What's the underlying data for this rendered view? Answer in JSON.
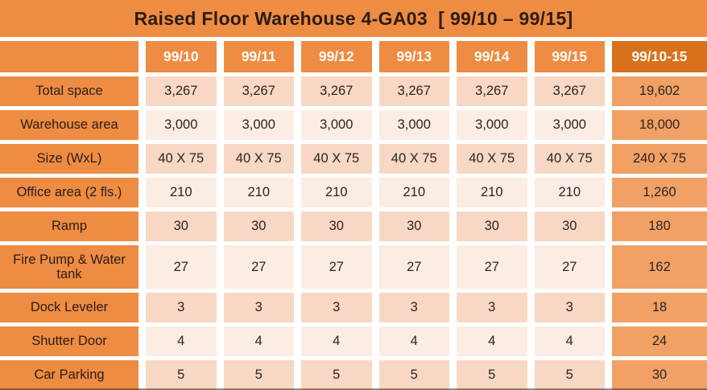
{
  "title": "Raised Floor Warehouse 4-GA03  [ 99/10 – 99/15]",
  "colors": {
    "orange": "#EE8C43",
    "dark_orange": "#D9711C",
    "total_column_cell": "#F1A166",
    "row_peach": "#F8D8C5",
    "row_cream": "#FBEDE4",
    "label_text": "#2B1D12",
    "header_text": "#FFFDF6"
  },
  "table": {
    "columns": [
      "",
      "99/10",
      "99/11",
      "99/12",
      "99/13",
      "99/14",
      "99/15",
      "99/10-15"
    ],
    "rows": [
      {
        "label": "Total space",
        "values": [
          "3,267",
          "3,267",
          "3,267",
          "3,267",
          "3,267",
          "3,267"
        ],
        "total": "19,602"
      },
      {
        "label": "Warehouse area",
        "values": [
          "3,000",
          "3,000",
          "3,000",
          "3,000",
          "3,000",
          "3,000"
        ],
        "total": "18,000"
      },
      {
        "label": "Size (WxL)",
        "values": [
          "40 X 75",
          "40 X 75",
          "40 X 75",
          "40 X 75",
          "40 X 75",
          "40 X 75"
        ],
        "total": "240 X 75"
      },
      {
        "label": "Office area (2 fls.)",
        "values": [
          "210",
          "210",
          "210",
          "210",
          "210",
          "210"
        ],
        "total": "1,260"
      },
      {
        "label": "Ramp",
        "values": [
          "30",
          "30",
          "30",
          "30",
          "30",
          "30"
        ],
        "total": "180"
      },
      {
        "label": "Fire Pump & Water tank",
        "values": [
          "27",
          "27",
          "27",
          "27",
          "27",
          "27"
        ],
        "total": "162"
      },
      {
        "label": "Dock Leveler",
        "values": [
          "3",
          "3",
          "3",
          "3",
          "3",
          "3"
        ],
        "total": "18"
      },
      {
        "label": "Shutter Door",
        "values": [
          "4",
          "4",
          "4",
          "4",
          "4",
          "4"
        ],
        "total": "24"
      },
      {
        "label": "Car Parking",
        "values": [
          "5",
          "5",
          "5",
          "5",
          "5",
          "5"
        ],
        "total": "30"
      }
    ]
  }
}
